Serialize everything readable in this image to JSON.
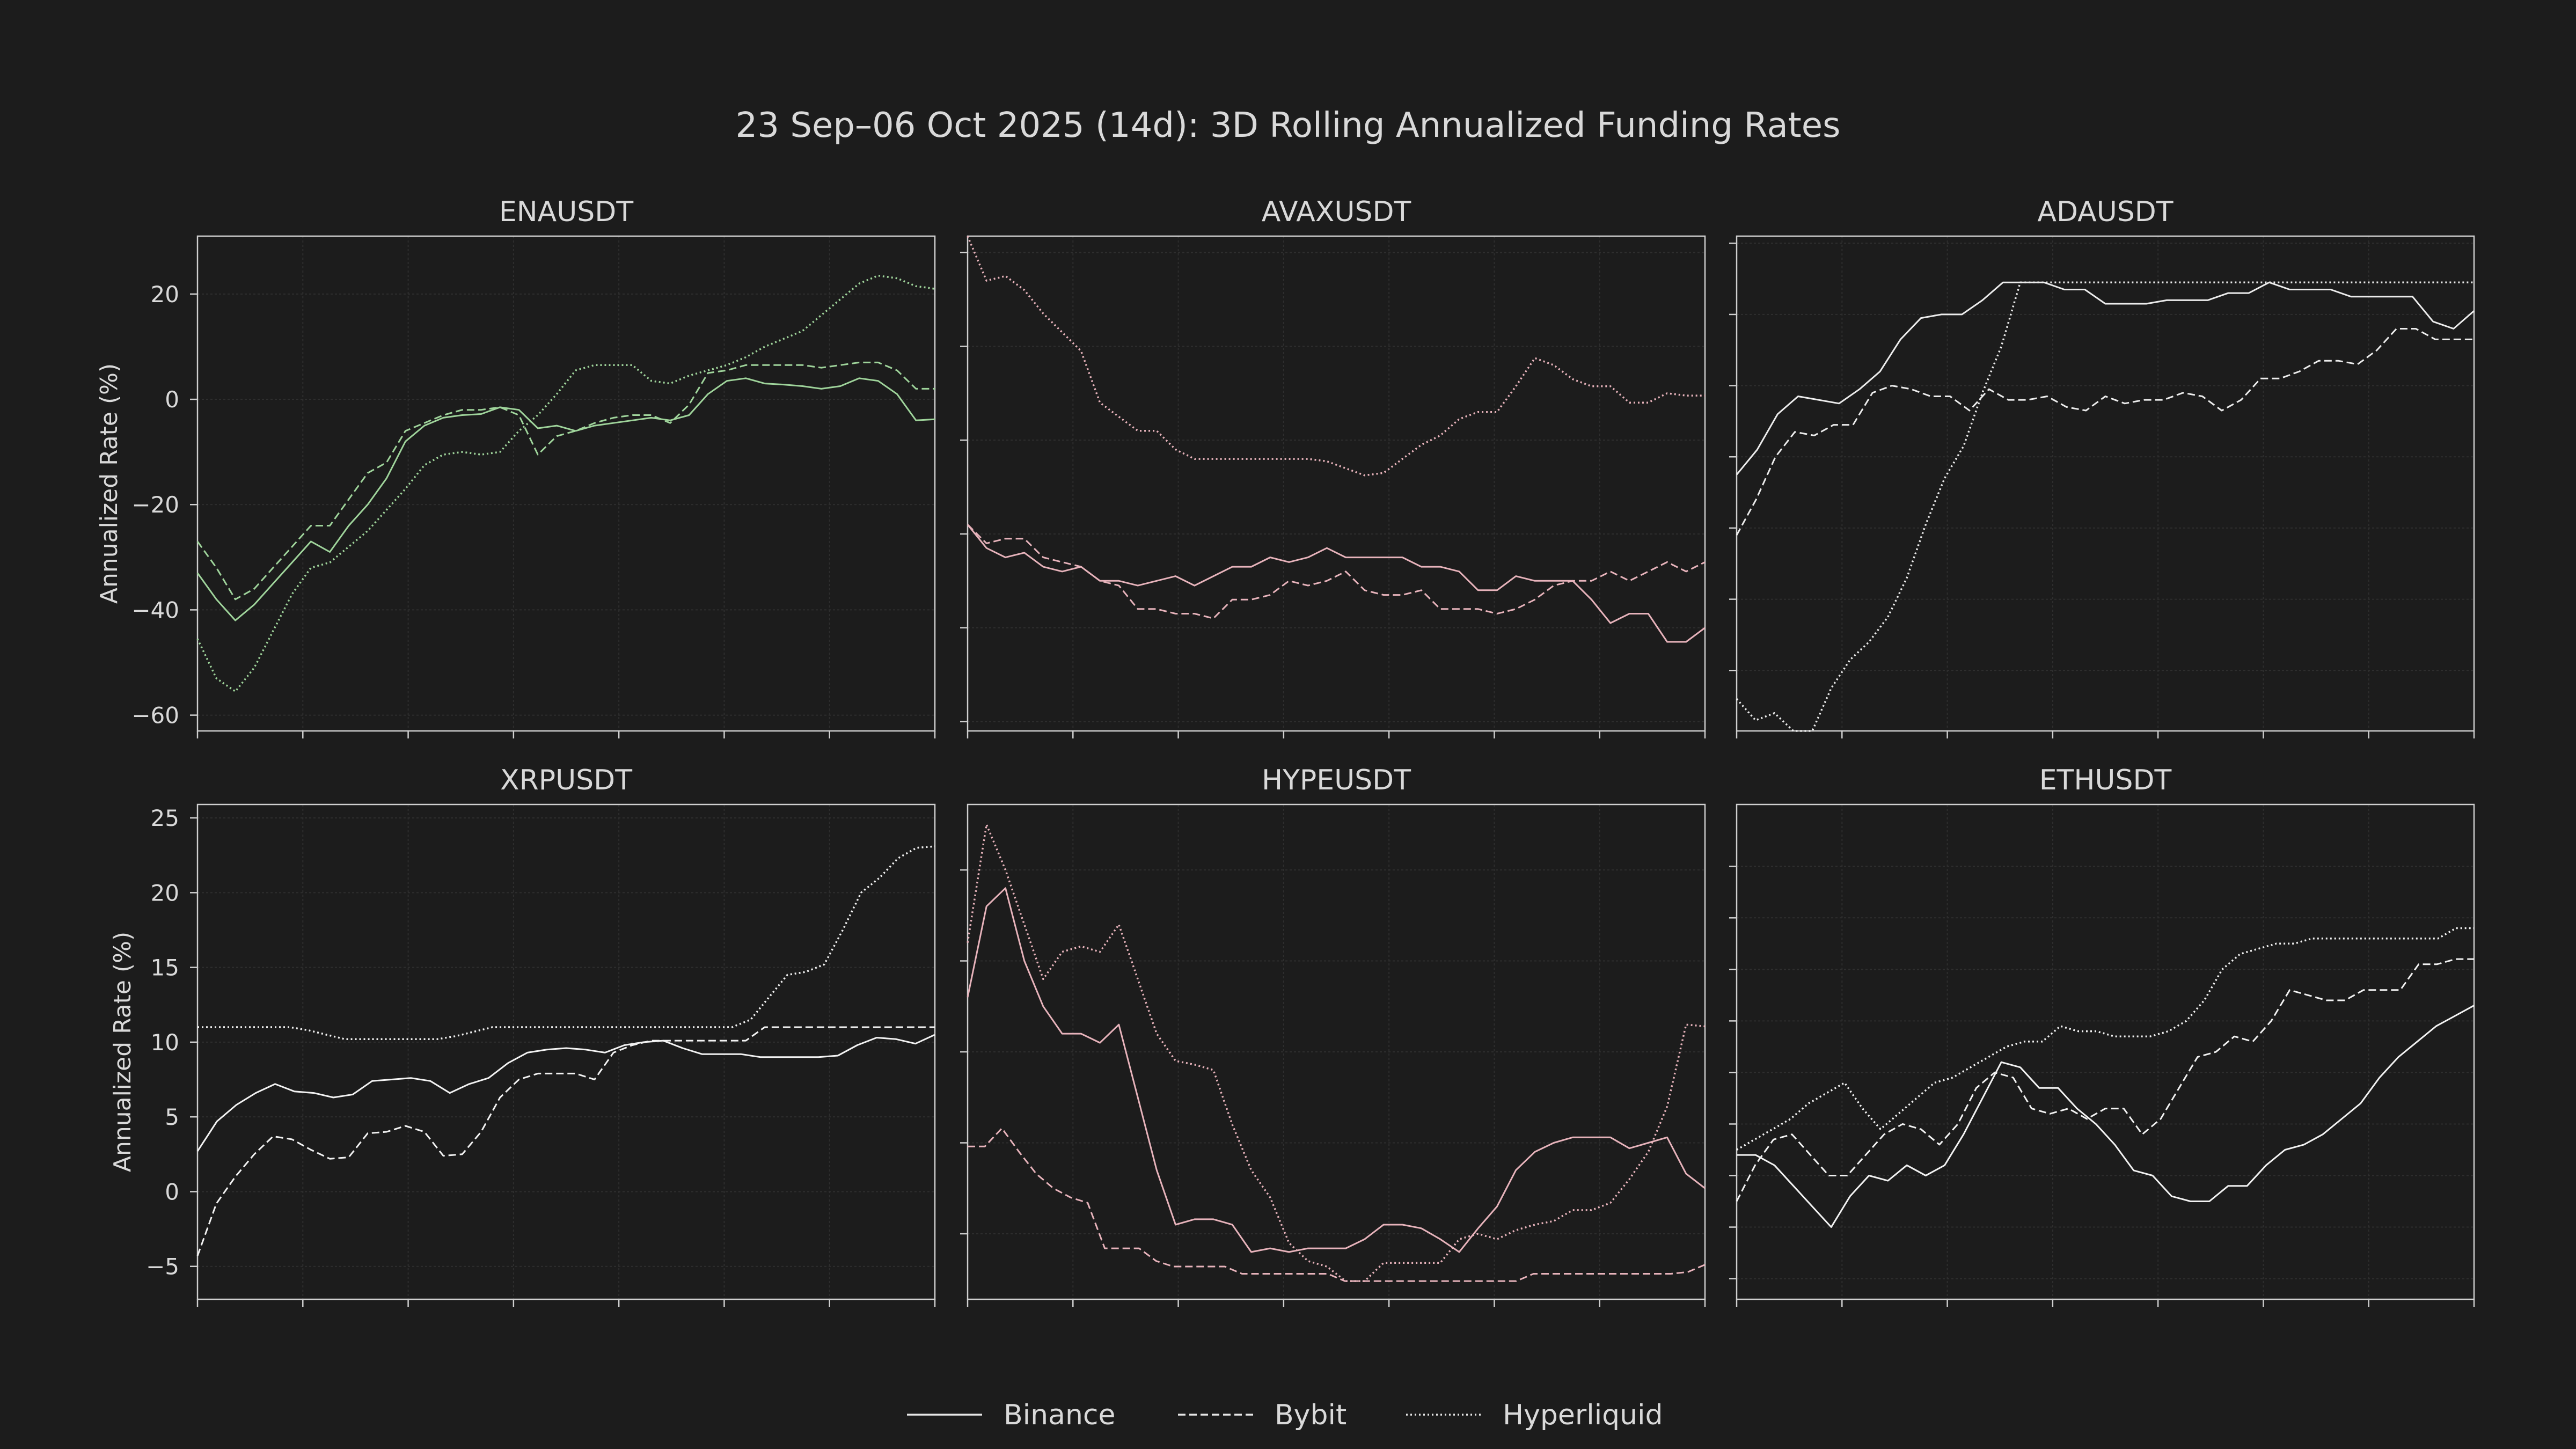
{
  "figure": {
    "title": "23 Sep–06 Oct 2025 (14d): 3D Rolling Annualized Funding Rates",
    "background": "#1c1c1c",
    "axes_color": "#cfcfcf",
    "text_color": "#d9d9d9",
    "grid": true
  },
  "legend": {
    "placement": "bottom-center",
    "items": [
      {
        "name": "Binance",
        "style": "solid"
      },
      {
        "name": "Bybit",
        "style": "dashed"
      },
      {
        "name": "Hyperliquid",
        "style": "dotted"
      }
    ]
  },
  "chart_data": [
    {
      "type": "line",
      "title": "ENAUSDT",
      "ylabel": "Annualized Rate (%)",
      "color": "#9fd49b",
      "ylim": [
        -63,
        31
      ],
      "yticks": [
        20,
        0,
        -20,
        -40,
        -60
      ],
      "y_tick_labels": true,
      "series": [
        {
          "name": "Binance",
          "style": "solid",
          "values": [
            -33,
            -38,
            -42,
            -39,
            -35,
            -31,
            -27,
            -29,
            -24,
            -20,
            -15,
            -8,
            -5,
            -3.5,
            -3,
            -2.8,
            -1.5,
            -2,
            -5.5,
            -5,
            -6,
            -5,
            -4.5,
            -4,
            -3.5,
            -4,
            -3,
            1,
            3.5,
            4,
            3,
            2.8,
            2.5,
            2,
            2.5,
            4,
            3.5,
            1,
            -4,
            -3.8
          ]
        },
        {
          "name": "Bybit",
          "style": "dashed",
          "values": [
            -27,
            -32,
            -38,
            -36,
            -32,
            -28,
            -24,
            -24,
            -19,
            -14,
            -12,
            -6,
            -4.5,
            -3,
            -2,
            -2,
            -1.5,
            -3,
            -10.5,
            -7,
            -6,
            -4.5,
            -3.5,
            -3,
            -3,
            -4.5,
            -1,
            5,
            5.5,
            6.5,
            6.5,
            6.5,
            6.5,
            6,
            6.5,
            7,
            7,
            5.5,
            2,
            2
          ]
        },
        {
          "name": "Hyperliquid",
          "style": "dotted",
          "values": [
            -45.5,
            -53,
            -55.5,
            -51,
            -44,
            -37,
            -32,
            -31,
            -28,
            -25,
            -21,
            -17,
            -12.5,
            -10.5,
            -10,
            -10.5,
            -10,
            -6,
            -3,
            1,
            5.5,
            6.5,
            6.5,
            6.5,
            3.5,
            3,
            4.5,
            5.5,
            6.5,
            8,
            10,
            11.5,
            13,
            16,
            19,
            22,
            23.5,
            23,
            21.5,
            21
          ]
        }
      ]
    },
    {
      "type": "line",
      "title": "AVAXUSDT",
      "ylabel": "",
      "color": "#e7b3bb",
      "ylim": [
        -82,
        23.5
      ],
      "yticks": [
        20,
        0,
        -20,
        -40,
        -60,
        -80
      ],
      "y_tick_labels": false,
      "series": [
        {
          "name": "Binance",
          "style": "solid",
          "values": [
            -38,
            -43,
            -45,
            -44,
            -47,
            -48,
            -47,
            -50,
            -50,
            -51,
            -50,
            -49,
            -51,
            -49,
            -47,
            -47,
            -45,
            -46,
            -45,
            -43,
            -45,
            -45,
            -45,
            -45,
            -47,
            -47,
            -48,
            -52,
            -52,
            -49,
            -50,
            -50,
            -50,
            -54,
            -59,
            -57,
            -57,
            -63,
            -63,
            -60
          ]
        },
        {
          "name": "Bybit",
          "style": "dashed",
          "values": [
            -38,
            -42,
            -41,
            -41,
            -45,
            -46,
            -47,
            -50,
            -51,
            -56,
            -56,
            -57,
            -57,
            -58,
            -54,
            -54,
            -53,
            -50,
            -51,
            -50,
            -48,
            -52,
            -53,
            -53,
            -52,
            -56,
            -56,
            -56,
            -57,
            -56,
            -54,
            -51,
            -50,
            -50,
            -48,
            -50,
            -48,
            -46,
            -48,
            -46
          ]
        },
        {
          "name": "Hyperliquid",
          "style": "dotted",
          "values": [
            23.5,
            14,
            15,
            12,
            7,
            3,
            -1,
            -12,
            -15,
            -18,
            -18,
            -22,
            -24,
            -24,
            -24,
            -24,
            -24,
            -24,
            -24,
            -24.5,
            -26,
            -27.5,
            -27,
            -24,
            -21,
            -19,
            -15.5,
            -14,
            -14,
            -8.5,
            -2.5,
            -4,
            -7,
            -8.5,
            -8.5,
            -12,
            -12,
            -10,
            -10.5,
            -10.5
          ]
        }
      ]
    },
    {
      "type": "line",
      "title": "ADAUSDT",
      "ylabel": "",
      "color": "#ececec",
      "ylim": [
        -137,
        2
      ],
      "yticks": [
        0,
        -20,
        -40,
        -60,
        -80,
        -100,
        -120
      ],
      "y_tick_labels": false,
      "series": [
        {
          "name": "Binance",
          "style": "solid",
          "values": [
            -65,
            -58,
            -48,
            -43,
            -44,
            -45,
            -41,
            -36,
            -27,
            -21,
            -20,
            -20,
            -16,
            -11,
            -11,
            -11,
            -13,
            -13,
            -17,
            -17,
            -17,
            -16,
            -16,
            -16,
            -14,
            -14,
            -11,
            -13,
            -13,
            -13,
            -15,
            -15,
            -15,
            -15,
            -22,
            -24,
            -19
          ]
        },
        {
          "name": "Bybit",
          "style": "dashed",
          "values": [
            -82,
            -72,
            -60,
            -53,
            -54,
            -51,
            -51,
            -42,
            -40,
            -41,
            -43,
            -43,
            -47,
            -41,
            -44,
            -44,
            -43,
            -46,
            -47,
            -43,
            -45,
            -44,
            -44,
            -42,
            -43,
            -47,
            -44,
            -38,
            -38,
            -36,
            -33,
            -33,
            -34,
            -30,
            -24,
            -24,
            -27,
            -27,
            -27
          ]
        },
        {
          "name": "Hyperliquid",
          "style": "dotted",
          "values": [
            -128,
            -134,
            -132,
            -140,
            -137,
            -125,
            -117,
            -112,
            -105,
            -94,
            -79,
            -66,
            -57,
            -42,
            -29,
            -11,
            -11,
            -11,
            -11,
            -11,
            -11,
            -11,
            -11,
            -11,
            -11,
            -11,
            -11,
            -11,
            -11,
            -11,
            -11,
            -11,
            -11,
            -11,
            -11,
            -11,
            -11,
            -11,
            -11,
            -11
          ]
        }
      ]
    },
    {
      "type": "line",
      "title": "XRPUSDT",
      "ylabel": "Annualized Rate (%)",
      "color": "#f2f2f2",
      "ylim": [
        -7.2,
        25.9
      ],
      "yticks": [
        25,
        20,
        15,
        10,
        5,
        0,
        -5
      ],
      "y_tick_labels": true,
      "series": [
        {
          "name": "Binance",
          "style": "solid",
          "values": [
            2.7,
            4.7,
            5.8,
            6.6,
            7.2,
            6.7,
            6.6,
            6.3,
            6.5,
            7.4,
            7.5,
            7.6,
            7.4,
            6.6,
            7.2,
            7.6,
            8.6,
            9.3,
            9.5,
            9.6,
            9.5,
            9.3,
            9.8,
            10,
            10.1,
            9.6,
            9.2,
            9.2,
            9.2,
            9,
            9,
            9,
            9,
            9.1,
            9.8,
            10.3,
            10.2,
            9.9,
            10.5
          ]
        },
        {
          "name": "Bybit",
          "style": "dashed",
          "values": [
            -4.3,
            -0.8,
            1,
            2.5,
            3.7,
            3.5,
            2.8,
            2.2,
            2.3,
            3.9,
            4,
            4.4,
            4,
            2.4,
            2.5,
            4,
            6.3,
            7.5,
            7.9,
            7.9,
            7.9,
            7.5,
            9.3,
            9.8,
            10.1,
            10.1,
            10.1,
            10.1,
            10.1,
            10.1,
            11,
            11,
            11,
            11,
            11,
            11,
            11,
            11,
            11,
            11
          ]
        },
        {
          "name": "Hyperliquid",
          "style": "dotted",
          "values": [
            11,
            11,
            11,
            11,
            11,
            11,
            10.8,
            10.5,
            10.2,
            10.2,
            10.2,
            10.2,
            10.2,
            10.2,
            10.4,
            10.7,
            11,
            11,
            11,
            11,
            11,
            11,
            11,
            11,
            11,
            11,
            11,
            11,
            11,
            11,
            11.5,
            13,
            14.5,
            14.7,
            15.2,
            17.5,
            20,
            21,
            22.3,
            23,
            23.1
          ]
        }
      ]
    },
    {
      "type": "line",
      "title": "HYPEUSDT",
      "ylabel": "",
      "color": "#e7b3bb",
      "ylim": [
        -3.6,
        23.6
      ],
      "yticks": [
        20,
        15,
        10,
        5,
        0
      ],
      "y_tick_labels": false,
      "series": [
        {
          "name": "Binance",
          "style": "solid",
          "values": [
            13,
            18,
            19,
            15,
            12.5,
            11,
            11,
            10.5,
            11.5,
            7.5,
            3.5,
            0.5,
            0.8,
            0.8,
            0.5,
            -1,
            -0.8,
            -1,
            -0.8,
            -0.8,
            -0.8,
            -0.3,
            0.5,
            0.5,
            0.3,
            -0.3,
            -1,
            0.3,
            1.5,
            3.5,
            4.5,
            5,
            5.3,
            5.3,
            5.3,
            4.7,
            5,
            5.3,
            3.3,
            2.5
          ]
        },
        {
          "name": "Bybit",
          "style": "dashed",
          "values": [
            4.8,
            4.8,
            5.8,
            4.5,
            3.3,
            2.5,
            2,
            1.7,
            -0.8,
            -0.8,
            -0.8,
            -1.5,
            -1.8,
            -1.8,
            -1.8,
            -1.8,
            -2.2,
            -2.2,
            -2.2,
            -2.2,
            -2.2,
            -2.2,
            -2.6,
            -2.6,
            -2.6,
            -2.6,
            -2.6,
            -2.6,
            -2.6,
            -2.6,
            -2.6,
            -2.6,
            -2.6,
            -2.2,
            -2.2,
            -2.2,
            -2.2,
            -2.2,
            -2.2,
            -2.2,
            -2.2,
            -2.2,
            -2.1,
            -1.7
          ]
        },
        {
          "name": "Hyperliquid",
          "style": "dotted",
          "values": [
            16,
            22.5,
            20,
            17,
            14,
            15.5,
            15.8,
            15.5,
            17,
            14,
            11,
            9.5,
            9.3,
            9,
            6,
            3.5,
            2,
            -0.5,
            -1.5,
            -1.8,
            -2.6,
            -2.6,
            -1.6,
            -1.6,
            -1.6,
            -1.6,
            -0.3,
            0,
            -0.3,
            0.2,
            0.5,
            0.7,
            1.3,
            1.3,
            1.7,
            3,
            4.5,
            7,
            11.5,
            11.4
          ]
        }
      ]
    },
    {
      "type": "line",
      "title": "ETHUSDT",
      "ylabel": "",
      "color": "#f2f2f2",
      "ylim": [
        -22,
        26
      ],
      "yticks": [
        20,
        15,
        10,
        5,
        0,
        -5,
        -10,
        -15,
        -20
      ],
      "y_tick_labels": false,
      "series": [
        {
          "name": "Binance",
          "style": "solid",
          "values": [
            -8,
            -8,
            -9,
            -11,
            -13,
            -15,
            -12,
            -10,
            -10.5,
            -9,
            -10,
            -9,
            -6,
            -2.5,
            1,
            0.5,
            -1.5,
            -1.5,
            -3.5,
            -5,
            -7,
            -9.5,
            -10,
            -12,
            -12.5,
            -12.5,
            -11,
            -11,
            -9,
            -7.5,
            -7,
            -6,
            -4.5,
            -3,
            -0.5,
            1.5,
            3,
            4.5,
            5.5,
            6.5
          ]
        },
        {
          "name": "Bybit",
          "style": "dashed",
          "values": [
            -12.5,
            -9,
            -6.5,
            -6,
            -8,
            -10,
            -10,
            -8,
            -6,
            -5,
            -5.5,
            -7,
            -5,
            -1.5,
            0,
            -0.5,
            -3.5,
            -4,
            -3.5,
            -4.5,
            -3.5,
            -3.5,
            -6,
            -4.5,
            -1.5,
            1.5,
            2,
            3.5,
            3,
            5,
            8,
            7.5,
            7,
            7,
            8,
            8,
            8,
            10.5,
            10.5,
            11,
            11
          ]
        },
        {
          "name": "Hyperliquid",
          "style": "dotted",
          "values": [
            -7.5,
            -6.5,
            -5.5,
            -4.5,
            -3,
            -2,
            -1,
            -3.5,
            -5.5,
            -4,
            -2.5,
            -1,
            -0.5,
            0.5,
            1.5,
            2.5,
            3,
            3,
            4.5,
            4,
            4,
            3.5,
            3.5,
            3.5,
            4,
            5,
            7,
            10,
            11.5,
            12,
            12.5,
            12.5,
            13,
            13,
            13,
            13,
            13,
            13,
            13,
            13,
            14,
            14
          ]
        }
      ]
    }
  ]
}
